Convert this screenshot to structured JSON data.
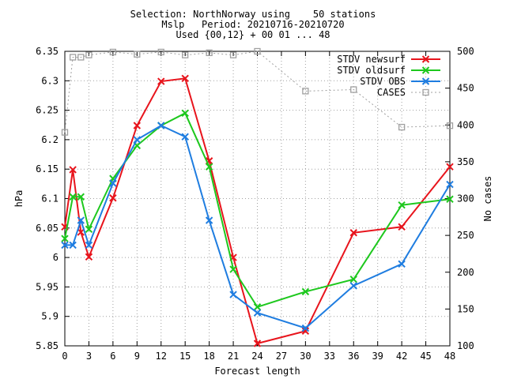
{
  "title_lines": [
    "Selection: NorthNorway using    50 stations",
    "Mslp   Period: 20210716-20210720",
    "Used {00,12} + 00 01 ... 48"
  ],
  "chart_data": {
    "type": "line",
    "title": "Selection: NorthNorway using    50 stations",
    "subtitle": "Mslp   Period: 20210716-20210720",
    "caption": "Used {00,12} + 00 01 ... 48",
    "xlabel": "Forecast length",
    "ylabel": "hPa",
    "y2label": "No cases",
    "xlim": [
      0,
      48
    ],
    "ylim": [
      5.85,
      6.35
    ],
    "y2lim": [
      100,
      500
    ],
    "xticks": [
      0,
      3,
      6,
      9,
      12,
      15,
      18,
      21,
      24,
      27,
      30,
      33,
      36,
      39,
      42,
      45,
      48
    ],
    "xtick_labels": [
      "0",
      "3",
      "6",
      "9",
      "12",
      "15",
      "18",
      "21",
      "24",
      "27",
      "30",
      "33",
      "36",
      "39",
      "42",
      "45",
      "48"
    ],
    "yticks": [
      5.85,
      5.9,
      5.95,
      6,
      6.05,
      6.1,
      6.15,
      6.2,
      6.25,
      6.3,
      6.35
    ],
    "ytick_labels": [
      "5.85",
      "5.9",
      "5.95",
      "6",
      "6.05",
      "6.1",
      "6.15",
      "6.2",
      "6.25",
      "6.3",
      "6.35"
    ],
    "y2ticks": [
      100,
      150,
      200,
      250,
      300,
      350,
      400,
      450,
      500
    ],
    "y2tick_labels": [
      "100",
      "150",
      "200",
      "250",
      "300",
      "350",
      "400",
      "450",
      "500"
    ],
    "grid": true,
    "legend_position": "top-right",
    "series": [
      {
        "name": "STDV newsurf",
        "color": "#e8141c",
        "marker": "x",
        "axis": "left",
        "x": [
          0,
          1,
          2,
          3,
          6,
          9,
          12,
          15,
          18,
          21,
          24,
          30,
          36,
          42,
          48
        ],
        "y": [
          6.052,
          6.149,
          6.043,
          6.001,
          6.101,
          6.224,
          6.299,
          6.304,
          6.164,
          6.0,
          5.854,
          5.875,
          6.042,
          6.052,
          6.154
        ]
      },
      {
        "name": "STDV oldsurf",
        "color": "#1ec81e",
        "marker": "x",
        "axis": "left",
        "x": [
          0,
          1,
          2,
          3,
          6,
          9,
          12,
          15,
          18,
          21,
          24,
          30,
          36,
          42,
          48
        ],
        "y": [
          6.032,
          6.103,
          6.103,
          6.048,
          6.134,
          6.19,
          6.224,
          6.245,
          6.154,
          5.98,
          5.916,
          5.942,
          5.963,
          6.089,
          6.099
        ]
      },
      {
        "name": "STDV OBS",
        "color": "#1f7de0",
        "marker": "x",
        "axis": "left",
        "x": [
          0,
          1,
          2,
          3,
          6,
          9,
          12,
          15,
          18,
          21,
          24,
          30,
          36,
          42,
          48
        ],
        "y": [
          6.021,
          6.021,
          6.063,
          6.021,
          6.126,
          6.2,
          6.224,
          6.205,
          6.063,
          5.937,
          5.906,
          5.88,
          5.952,
          5.989,
          6.124
        ]
      },
      {
        "name": "CASES",
        "color": "#a0a0a0",
        "marker": "square",
        "axis": "right",
        "dashed": true,
        "x": [
          0,
          1,
          2,
          3,
          6,
          9,
          12,
          15,
          18,
          21,
          24,
          30,
          36,
          42,
          48
        ],
        "y": [
          390,
          492,
          492,
          495,
          499,
          496,
          499,
          495,
          498,
          495,
          500,
          446,
          448,
          397,
          399
        ]
      }
    ]
  }
}
